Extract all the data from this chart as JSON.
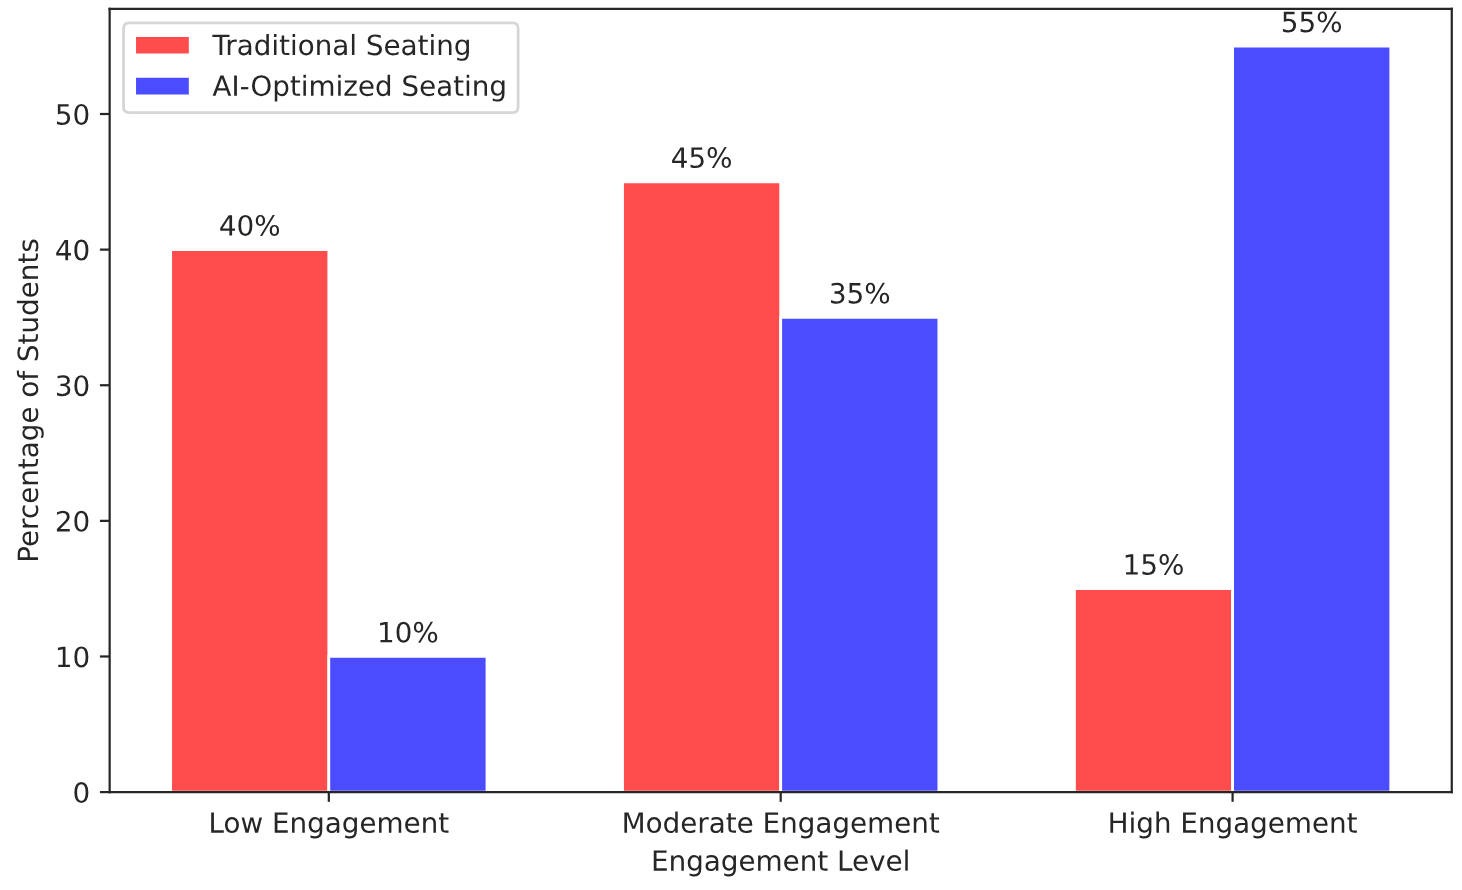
{
  "chart_data": {
    "type": "bar",
    "xlabel": "Engagement Level",
    "ylabel": "Percentage of Students",
    "categories": [
      "Low Engagement",
      "Moderate Engagement",
      "High Engagement"
    ],
    "series": [
      {
        "name": "Traditional Seating",
        "color": "#ff4c4c",
        "values": [
          40,
          45,
          15
        ],
        "value_labels": [
          "40%",
          "45%",
          "15%"
        ]
      },
      {
        "name": "AI-Optimized Seating",
        "color": "#4c4cff",
        "values": [
          10,
          35,
          55
        ],
        "value_labels": [
          "10%",
          "35%",
          "55%"
        ]
      }
    ],
    "ylim": [
      0,
      57.75
    ],
    "yticks": [
      0,
      10,
      20,
      30,
      40,
      50
    ],
    "legend": "top left",
    "grid": false
  }
}
